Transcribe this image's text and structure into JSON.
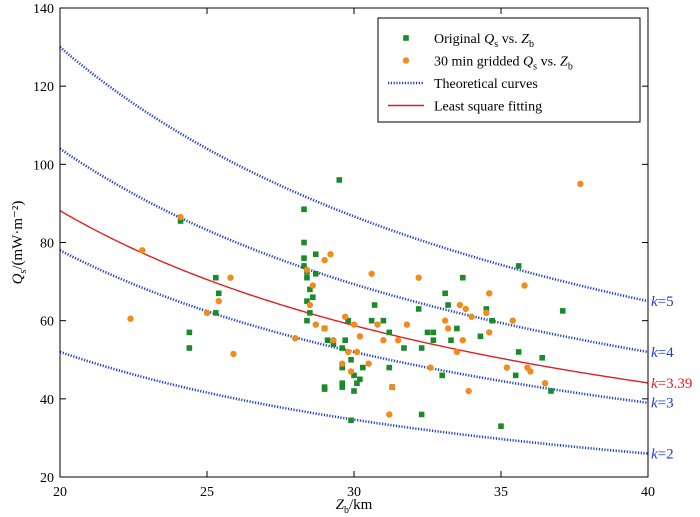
{
  "chart_data": {
    "type": "scatter",
    "xlabel": "Z_b/km",
    "ylabel": "Q_s/(mW·m⁻²)",
    "xlim": [
      20,
      40
    ],
    "ylim": [
      20,
      140
    ],
    "x_ticks": [
      20,
      25,
      30,
      35,
      40
    ],
    "y_ticks": [
      20,
      40,
      60,
      80,
      100,
      120,
      140
    ],
    "grid": false,
    "legend_position": "top-right",
    "legend": [
      {
        "key": "original",
        "label": "Original Qs vs. Zb"
      },
      {
        "key": "gridded",
        "label": "30 min gridded Qs vs. Zb"
      },
      {
        "key": "theoretical",
        "label": "Theoretical curves"
      },
      {
        "key": "fit",
        "label": "Least square fitting"
      }
    ],
    "curves": [
      {
        "label": "k=5",
        "k": 5,
        "A": 2600,
        "kind": "theoretical",
        "color": "#1f3bd6"
      },
      {
        "label": "k=4",
        "k": 4,
        "A": 2080,
        "kind": "theoretical",
        "color": "#1f3bd6"
      },
      {
        "label": "k=3.39",
        "k": 3.39,
        "A": 1763,
        "kind": "fit",
        "color": "#e02020"
      },
      {
        "label": "k=3",
        "k": 3,
        "A": 1560,
        "kind": "theoretical",
        "color": "#1f3bd6"
      },
      {
        "label": "k=2",
        "k": 2,
        "A": 1040,
        "kind": "theoretical",
        "color": "#1f3bd6"
      }
    ],
    "series": [
      {
        "name": "Original Qs vs. Zb",
        "color": "#1a8a2a",
        "marker": "square",
        "points": [
          [
            24.1,
            85.5
          ],
          [
            24.4,
            57
          ],
          [
            24.4,
            53
          ],
          [
            25.3,
            71
          ],
          [
            25.4,
            67
          ],
          [
            25.3,
            62
          ],
          [
            28.3,
            88.5
          ],
          [
            28.3,
            80
          ],
          [
            28.3,
            76
          ],
          [
            28.3,
            74
          ],
          [
            28.4,
            72.5
          ],
          [
            28.4,
            71
          ],
          [
            28.5,
            68
          ],
          [
            28.4,
            65
          ],
          [
            28.5,
            62
          ],
          [
            28.4,
            60
          ],
          [
            28.6,
            66
          ],
          [
            28.7,
            77
          ],
          [
            28.7,
            72
          ],
          [
            29.0,
            58
          ],
          [
            29.1,
            55
          ],
          [
            29.0,
            43
          ],
          [
            29.0,
            42.5
          ],
          [
            29.3,
            54
          ],
          [
            29.5,
            96
          ],
          [
            29.6,
            53
          ],
          [
            29.6,
            48
          ],
          [
            29.6,
            44
          ],
          [
            29.6,
            43
          ],
          [
            29.7,
            55
          ],
          [
            29.8,
            60
          ],
          [
            29.9,
            50
          ],
          [
            30.0,
            46
          ],
          [
            30.1,
            44
          ],
          [
            30.0,
            42
          ],
          [
            29.9,
            34.5
          ],
          [
            30.2,
            45
          ],
          [
            30.3,
            48
          ],
          [
            30.6,
            60
          ],
          [
            30.7,
            64
          ],
          [
            31.0,
            60
          ],
          [
            31.2,
            57
          ],
          [
            31.2,
            48
          ],
          [
            31.3,
            43
          ],
          [
            31.7,
            53
          ],
          [
            32.2,
            63
          ],
          [
            32.3,
            53
          ],
          [
            32.3,
            36
          ],
          [
            32.5,
            57
          ],
          [
            32.7,
            57
          ],
          [
            32.7,
            55
          ],
          [
            33.0,
            46
          ],
          [
            33.1,
            67
          ],
          [
            33.2,
            64
          ],
          [
            33.3,
            55
          ],
          [
            33.5,
            58
          ],
          [
            33.7,
            71
          ],
          [
            34.3,
            56
          ],
          [
            34.5,
            63
          ],
          [
            34.7,
            60
          ],
          [
            35.0,
            33
          ],
          [
            35.5,
            46
          ],
          [
            35.6,
            52
          ],
          [
            35.6,
            74
          ],
          [
            36.4,
            50.5
          ],
          [
            36.7,
            42
          ],
          [
            37.1,
            62.5
          ]
        ]
      },
      {
        "name": "30 min gridded Qs vs. Zb",
        "color": "#f08c1e",
        "marker": "circle",
        "points": [
          [
            22.4,
            60.5
          ],
          [
            22.8,
            78
          ],
          [
            24.1,
            86.5
          ],
          [
            25.0,
            62
          ],
          [
            25.4,
            65
          ],
          [
            25.8,
            71
          ],
          [
            25.9,
            51.5
          ],
          [
            28.0,
            55.5
          ],
          [
            28.4,
            73
          ],
          [
            28.5,
            64
          ],
          [
            28.6,
            69
          ],
          [
            28.7,
            59
          ],
          [
            29.0,
            58
          ],
          [
            29.0,
            75.5
          ],
          [
            29.2,
            77
          ],
          [
            29.3,
            55
          ],
          [
            29.6,
            49
          ],
          [
            29.7,
            61
          ],
          [
            29.8,
            52
          ],
          [
            29.9,
            47
          ],
          [
            30.0,
            59
          ],
          [
            30.1,
            52
          ],
          [
            30.2,
            56
          ],
          [
            30.5,
            49
          ],
          [
            30.6,
            72
          ],
          [
            30.8,
            59
          ],
          [
            31.0,
            55
          ],
          [
            31.3,
            43
          ],
          [
            31.2,
            36
          ],
          [
            31.5,
            55
          ],
          [
            31.8,
            59
          ],
          [
            32.2,
            71
          ],
          [
            32.6,
            48
          ],
          [
            33.1,
            60
          ],
          [
            33.2,
            58
          ],
          [
            33.5,
            52
          ],
          [
            33.6,
            64
          ],
          [
            33.7,
            55
          ],
          [
            33.8,
            63
          ],
          [
            33.9,
            42
          ],
          [
            34.0,
            61
          ],
          [
            34.5,
            62
          ],
          [
            34.6,
            67
          ],
          [
            34.6,
            57
          ],
          [
            35.2,
            48
          ],
          [
            35.4,
            60
          ],
          [
            35.8,
            69
          ],
          [
            35.9,
            48
          ],
          [
            36.0,
            47
          ],
          [
            36.5,
            44
          ],
          [
            37.7,
            95
          ]
        ]
      }
    ]
  }
}
